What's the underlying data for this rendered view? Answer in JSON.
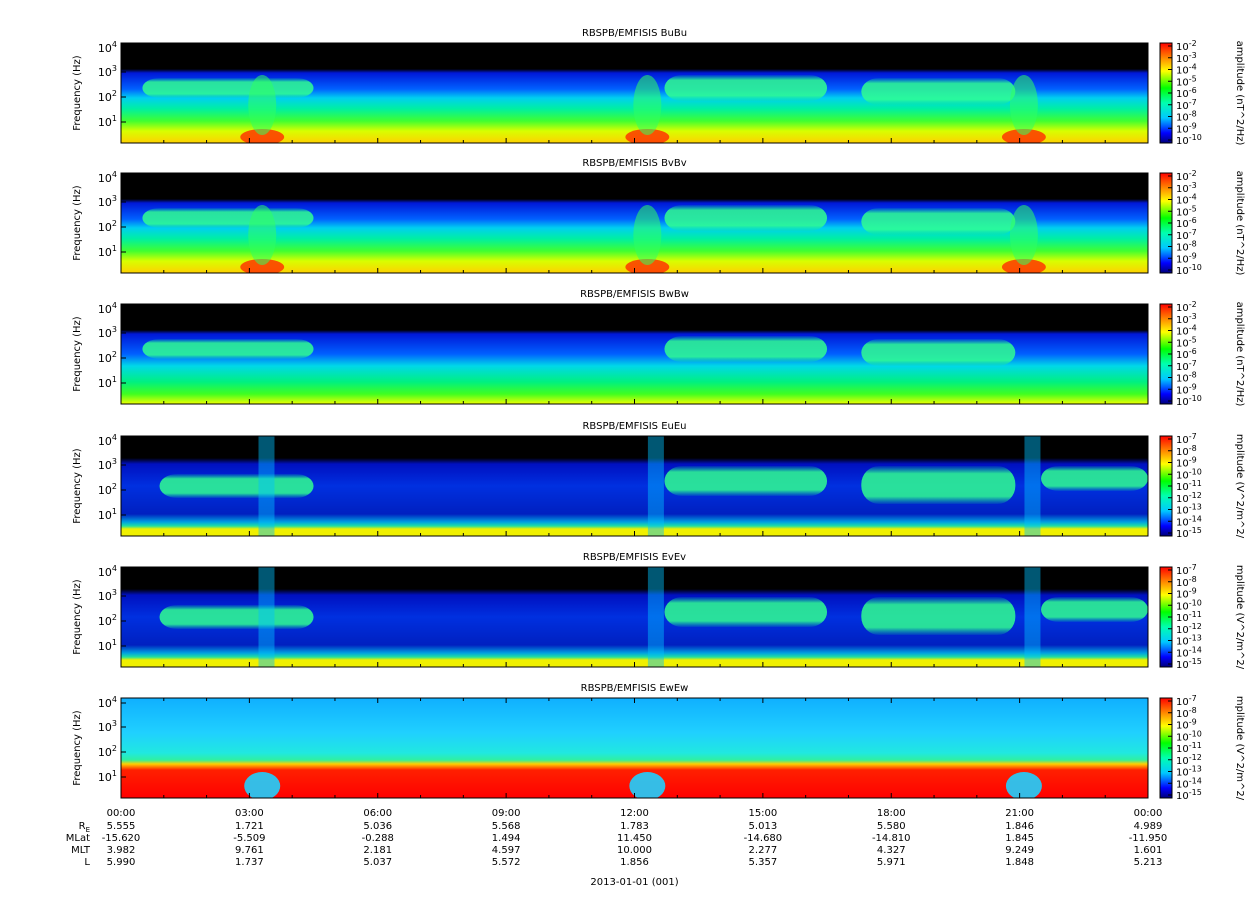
{
  "chart_data": {
    "type": "heatmap",
    "xlabel": "2013-01-01 (001)",
    "x_ticks": [
      "00:00",
      "03:00",
      "06:00",
      "09:00",
      "12:00",
      "15:00",
      "18:00",
      "21:00",
      "00:00"
    ],
    "ephemeris": {
      "rows": [
        {
          "label": "R",
          "label_sub": "E",
          "values": [
            "5.555",
            "1.721",
            "5.036",
            "5.568",
            "1.783",
            "5.013",
            "5.580",
            "1.846",
            "4.989"
          ]
        },
        {
          "label": "MLat",
          "values": [
            "-15.620",
            "-5.509",
            "-0.288",
            "1.494",
            "11.450",
            "-14.680",
            "-14.810",
            "1.845",
            "-11.950"
          ]
        },
        {
          "label": "MLT",
          "values": [
            "3.982",
            "9.761",
            "2.181",
            "4.597",
            "10.000",
            "2.277",
            "4.327",
            "9.249",
            "1.601"
          ]
        },
        {
          "label": "L",
          "values": [
            "5.990",
            "1.737",
            "5.037",
            "5.572",
            "1.856",
            "5.357",
            "5.971",
            "1.848",
            "5.213"
          ]
        }
      ]
    },
    "panels": [
      {
        "title": "RBSPB/EMFISIS  BuBu",
        "ylabel": "Frequency (Hz)",
        "y_ticks": [
          {
            "base": "10",
            "exp": "1"
          },
          {
            "base": "10",
            "exp": "2"
          },
          {
            "base": "10",
            "exp": "3"
          },
          {
            "base": "10",
            "exp": "4"
          }
        ],
        "colorbar_label": "amplitude (nT^2/Hz)",
        "colorbar_ticks": [
          {
            "base": "10",
            "exp": "-2"
          },
          {
            "base": "10",
            "exp": "-3"
          },
          {
            "base": "10",
            "exp": "-4"
          },
          {
            "base": "10",
            "exp": "-5"
          },
          {
            "base": "10",
            "exp": "-6"
          },
          {
            "base": "10",
            "exp": "-7"
          },
          {
            "base": "10",
            "exp": "-8"
          },
          {
            "base": "10",
            "exp": "-9"
          },
          {
            "base": "10",
            "exp": "-10"
          }
        ],
        "kind": "B"
      },
      {
        "title": "RBSPB/EMFISIS  BvBv",
        "ylabel": "Frequency (Hz)",
        "y_ticks": [
          {
            "base": "10",
            "exp": "1"
          },
          {
            "base": "10",
            "exp": "2"
          },
          {
            "base": "10",
            "exp": "3"
          },
          {
            "base": "10",
            "exp": "4"
          }
        ],
        "colorbar_label": "amplitude (nT^2/Hz)",
        "colorbar_ticks": [
          {
            "base": "10",
            "exp": "-2"
          },
          {
            "base": "10",
            "exp": "-3"
          },
          {
            "base": "10",
            "exp": "-4"
          },
          {
            "base": "10",
            "exp": "-5"
          },
          {
            "base": "10",
            "exp": "-6"
          },
          {
            "base": "10",
            "exp": "-7"
          },
          {
            "base": "10",
            "exp": "-8"
          },
          {
            "base": "10",
            "exp": "-9"
          },
          {
            "base": "10",
            "exp": "-10"
          }
        ],
        "kind": "B"
      },
      {
        "title": "RBSPB/EMFISIS  BwBw",
        "ylabel": "Frequency (Hz)",
        "y_ticks": [
          {
            "base": "10",
            "exp": "1"
          },
          {
            "base": "10",
            "exp": "2"
          },
          {
            "base": "10",
            "exp": "3"
          },
          {
            "base": "10",
            "exp": "4"
          }
        ],
        "colorbar_label": "amplitude (nT^2/Hz)",
        "colorbar_ticks": [
          {
            "base": "10",
            "exp": "-2"
          },
          {
            "base": "10",
            "exp": "-3"
          },
          {
            "base": "10",
            "exp": "-4"
          },
          {
            "base": "10",
            "exp": "-5"
          },
          {
            "base": "10",
            "exp": "-6"
          },
          {
            "base": "10",
            "exp": "-7"
          },
          {
            "base": "10",
            "exp": "-8"
          },
          {
            "base": "10",
            "exp": "-9"
          },
          {
            "base": "10",
            "exp": "-10"
          }
        ],
        "kind": "Bw"
      },
      {
        "title": "RBSPB/EMFISIS  EuEu",
        "ylabel": "Frequency (Hz)",
        "y_ticks": [
          {
            "base": "10",
            "exp": "1"
          },
          {
            "base": "10",
            "exp": "2"
          },
          {
            "base": "10",
            "exp": "3"
          },
          {
            "base": "10",
            "exp": "4"
          }
        ],
        "colorbar_label": "mplitude (V^2/m^2/",
        "colorbar_ticks": [
          {
            "base": "10",
            "exp": "-7"
          },
          {
            "base": "10",
            "exp": "-8"
          },
          {
            "base": "10",
            "exp": "-9"
          },
          {
            "base": "10",
            "exp": "-10"
          },
          {
            "base": "10",
            "exp": "-11"
          },
          {
            "base": "10",
            "exp": "-12"
          },
          {
            "base": "10",
            "exp": "-13"
          },
          {
            "base": "10",
            "exp": "-14"
          },
          {
            "base": "10",
            "exp": "-15"
          }
        ],
        "kind": "E"
      },
      {
        "title": "RBSPB/EMFISIS  EvEv",
        "ylabel": "Frequency (Hz)",
        "y_ticks": [
          {
            "base": "10",
            "exp": "1"
          },
          {
            "base": "10",
            "exp": "2"
          },
          {
            "base": "10",
            "exp": "3"
          },
          {
            "base": "10",
            "exp": "4"
          }
        ],
        "colorbar_label": "mplitude (V^2/m^2/",
        "colorbar_ticks": [
          {
            "base": "10",
            "exp": "-7"
          },
          {
            "base": "10",
            "exp": "-8"
          },
          {
            "base": "10",
            "exp": "-9"
          },
          {
            "base": "10",
            "exp": "-10"
          },
          {
            "base": "10",
            "exp": "-11"
          },
          {
            "base": "10",
            "exp": "-12"
          },
          {
            "base": "10",
            "exp": "-13"
          },
          {
            "base": "10",
            "exp": "-14"
          },
          {
            "base": "10",
            "exp": "-15"
          }
        ],
        "kind": "E"
      },
      {
        "title": "RBSPB/EMFISIS  EwEw",
        "ylabel": "Frequency (Hz)",
        "y_ticks": [
          {
            "base": "10",
            "exp": "1"
          },
          {
            "base": "10",
            "exp": "2"
          },
          {
            "base": "10",
            "exp": "3"
          },
          {
            "base": "10",
            "exp": "4"
          }
        ],
        "colorbar_label": "mplitude (V^2/m^2/",
        "colorbar_ticks": [
          {
            "base": "10",
            "exp": "-7"
          },
          {
            "base": "10",
            "exp": "-8"
          },
          {
            "base": "10",
            "exp": "-9"
          },
          {
            "base": "10",
            "exp": "-10"
          },
          {
            "base": "10",
            "exp": "-11"
          },
          {
            "base": "10",
            "exp": "-12"
          },
          {
            "base": "10",
            "exp": "-13"
          },
          {
            "base": "10",
            "exp": "-14"
          },
          {
            "base": "10",
            "exp": "-15"
          }
        ],
        "kind": "Ew"
      }
    ]
  }
}
